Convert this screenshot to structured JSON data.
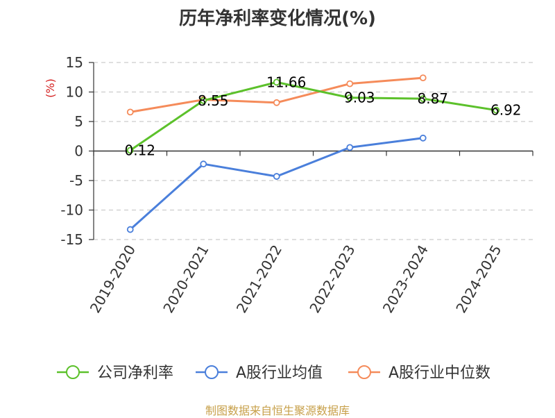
{
  "chart_data": {
    "type": "line",
    "title": "历年净利率变化情况(%)",
    "ylabel": "(%)",
    "categories": [
      "2019-2020",
      "2020-2021",
      "2021-2022",
      "2022-2023",
      "2023-2024",
      "2024-2025"
    ],
    "ylim": [
      -15,
      15
    ],
    "yticks": [
      15,
      10,
      5,
      0,
      -5,
      -10,
      -15
    ],
    "ytick_labels": [
      "15",
      "10",
      "5",
      "0",
      "-5",
      "-10",
      "-15"
    ],
    "grid": true,
    "legend_position": "bottom",
    "series": [
      {
        "name": "公司净利率",
        "color": "#5cc12b",
        "values": [
          0.12,
          8.55,
          11.66,
          9.03,
          8.87,
          6.92
        ],
        "data_labels": [
          "0.12",
          "8.55",
          "11.66",
          "9.03",
          "8.87",
          "6.92"
        ]
      },
      {
        "name": "A股行业均值",
        "color": "#4a7fdb",
        "values": [
          -13.3,
          -2.2,
          -4.3,
          0.6,
          2.2,
          null
        ]
      },
      {
        "name": "A股行业中位数",
        "color": "#f58b5a",
        "values": [
          6.6,
          8.7,
          8.2,
          11.4,
          12.4,
          null
        ]
      }
    ],
    "ylabel_color": "#d42020"
  },
  "source_note": "制图数据来自恒生聚源数据库"
}
